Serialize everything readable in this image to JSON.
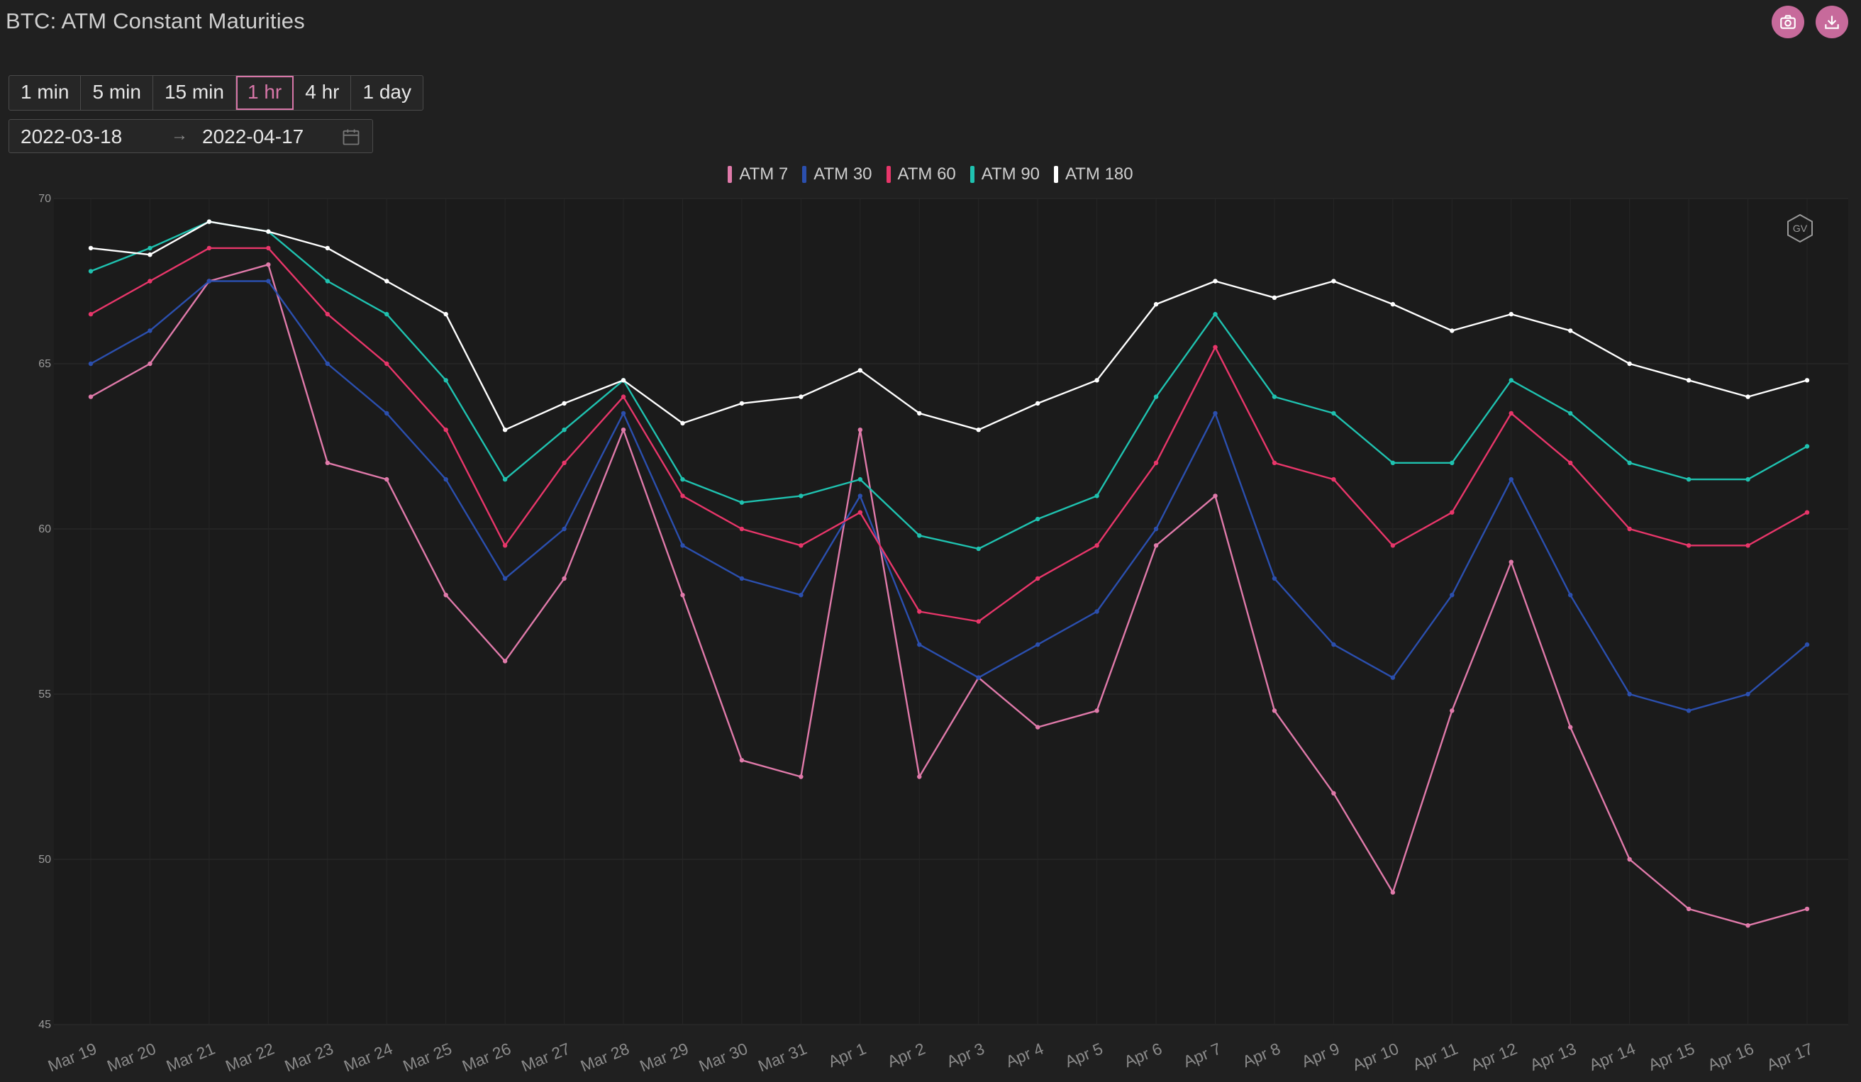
{
  "title": "BTC: ATM Constant Maturities",
  "toolbar": {
    "screenshot_icon": "camera-icon",
    "download_icon": "download-icon",
    "accent": "#c76a9b"
  },
  "intervals": [
    {
      "label": "1 min",
      "active": false
    },
    {
      "label": "5 min",
      "active": false
    },
    {
      "label": "15 min",
      "active": false
    },
    {
      "label": "1 hr",
      "active": true
    },
    {
      "label": "4 hr",
      "active": false
    },
    {
      "label": "1 day",
      "active": false
    }
  ],
  "date_range": {
    "start": "2022-03-18",
    "separator": "→",
    "end": "2022-04-17",
    "icon": "calendar-icon"
  },
  "watermark": "GV",
  "chart_data": {
    "type": "line",
    "title": "BTC: ATM Constant Maturities",
    "xlabel": "",
    "ylabel": "",
    "ylim": [
      45,
      70
    ],
    "yticks": [
      45,
      50,
      55,
      60,
      65,
      70
    ],
    "x_range": [
      "2022-03-18T20:00",
      "2022-04-17T20:00"
    ],
    "xtick_labels": [
      "Mar 19",
      "Mar 20",
      "Mar 21",
      "Mar 22",
      "Mar 23",
      "Mar 24",
      "Mar 25",
      "Mar 26",
      "Mar 27",
      "Mar 28",
      "Mar 29",
      "Mar 30",
      "Mar 31",
      "Apr 1",
      "Apr 2",
      "Apr 3",
      "Apr 4",
      "Apr 5",
      "Apr 6",
      "Apr 7",
      "Apr 8",
      "Apr 9",
      "Apr 10",
      "Apr 11",
      "Apr 12",
      "Apr 13",
      "Apr 14",
      "Apr 15",
      "Apr 16",
      "Apr 17"
    ],
    "grid": true,
    "legend_position": "top-center",
    "x": [
      "Mar 19",
      "Mar 20",
      "Mar 21",
      "Mar 22",
      "Mar 23",
      "Mar 24",
      "Mar 25",
      "Mar 26",
      "Mar 27",
      "Mar 28",
      "Mar 29",
      "Mar 30",
      "Mar 31",
      "Apr 1",
      "Apr 2",
      "Apr 3",
      "Apr 4",
      "Apr 5",
      "Apr 6",
      "Apr 7",
      "Apr 8",
      "Apr 9",
      "Apr 10",
      "Apr 11",
      "Apr 12",
      "Apr 13",
      "Apr 14",
      "Apr 15",
      "Apr 16",
      "Apr 17"
    ],
    "series": [
      {
        "name": "ATM 7",
        "color": "#e07aaa",
        "values": [
          64.0,
          65.0,
          67.5,
          68.0,
          62.0,
          61.5,
          58.0,
          56.0,
          58.5,
          63.0,
          58.0,
          53.0,
          52.5,
          63.0,
          52.5,
          55.5,
          54.0,
          54.5,
          59.5,
          61.0,
          54.5,
          52.0,
          49.0,
          54.5,
          59.0,
          54.0,
          50.0,
          48.5,
          48.0,
          48.5
        ]
      },
      {
        "name": "ATM 30",
        "color": "#2b4fae",
        "values": [
          65.0,
          66.0,
          67.5,
          67.5,
          65.0,
          63.5,
          61.5,
          58.5,
          60.0,
          63.5,
          59.5,
          58.5,
          58.0,
          61.0,
          56.5,
          55.5,
          56.5,
          57.5,
          60.0,
          63.5,
          58.5,
          56.5,
          55.5,
          58.0,
          61.5,
          58.0,
          55.0,
          54.5,
          55.0,
          56.5
        ]
      },
      {
        "name": "ATM 60",
        "color": "#e8366a",
        "values": [
          66.5,
          67.5,
          68.5,
          68.5,
          66.5,
          65.0,
          63.0,
          59.5,
          62.0,
          64.0,
          61.0,
          60.0,
          59.5,
          60.5,
          57.5,
          57.2,
          58.5,
          59.5,
          62.0,
          65.5,
          62.0,
          61.5,
          59.5,
          60.5,
          63.5,
          62.0,
          60.0,
          59.5,
          59.5,
          60.5
        ]
      },
      {
        "name": "ATM 90",
        "color": "#1fc2b0",
        "values": [
          67.8,
          68.5,
          69.3,
          69.0,
          67.5,
          66.5,
          64.5,
          61.5,
          63.0,
          64.5,
          61.5,
          60.8,
          61.0,
          61.5,
          59.8,
          59.4,
          60.3,
          61.0,
          64.0,
          66.5,
          64.0,
          63.5,
          62.0,
          62.0,
          64.5,
          63.5,
          62.0,
          61.5,
          61.5,
          62.5
        ]
      },
      {
        "name": "ATM 180",
        "color": "#ffffff",
        "values": [
          68.5,
          68.3,
          69.3,
          69.0,
          68.5,
          67.5,
          66.5,
          63.0,
          63.8,
          64.5,
          63.2,
          63.8,
          64.0,
          64.8,
          63.5,
          63.0,
          63.8,
          64.5,
          66.8,
          67.5,
          67.0,
          67.5,
          66.8,
          66.0,
          66.5,
          66.0,
          65.0,
          64.5,
          64.0,
          64.5
        ]
      }
    ]
  }
}
